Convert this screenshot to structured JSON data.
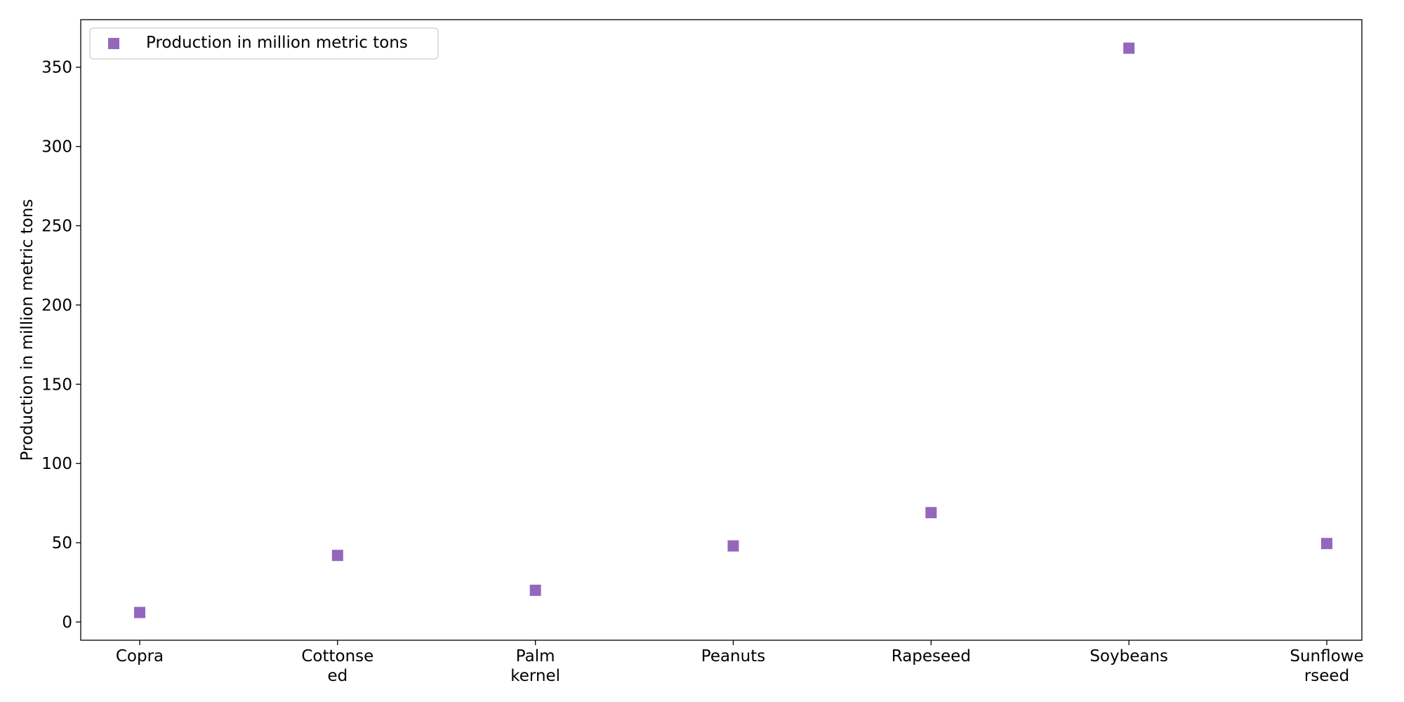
{
  "chart_data": {
    "type": "scatter",
    "title": "",
    "xlabel": "",
    "ylabel": "Production in million metric tons",
    "categories": [
      [
        "Copra"
      ],
      [
        "Cottonse",
        "ed"
      ],
      [
        "Palm",
        "kernel"
      ],
      [
        "Peanuts"
      ],
      [
        "Rapeseed"
      ],
      [
        "Soybeans"
      ],
      [
        "Sunflowe",
        "rseed"
      ]
    ],
    "series": [
      {
        "name": "Production in million metric tons",
        "marker": "square",
        "color": "#9467bd",
        "values": [
          6,
          42,
          20,
          48,
          69,
          362,
          49.5
        ]
      }
    ],
    "ylim": [
      -11.5,
      380
    ],
    "yticks": [
      0,
      50,
      100,
      150,
      200,
      250,
      300,
      350
    ],
    "grid": false,
    "legend_position": "upper-left"
  }
}
